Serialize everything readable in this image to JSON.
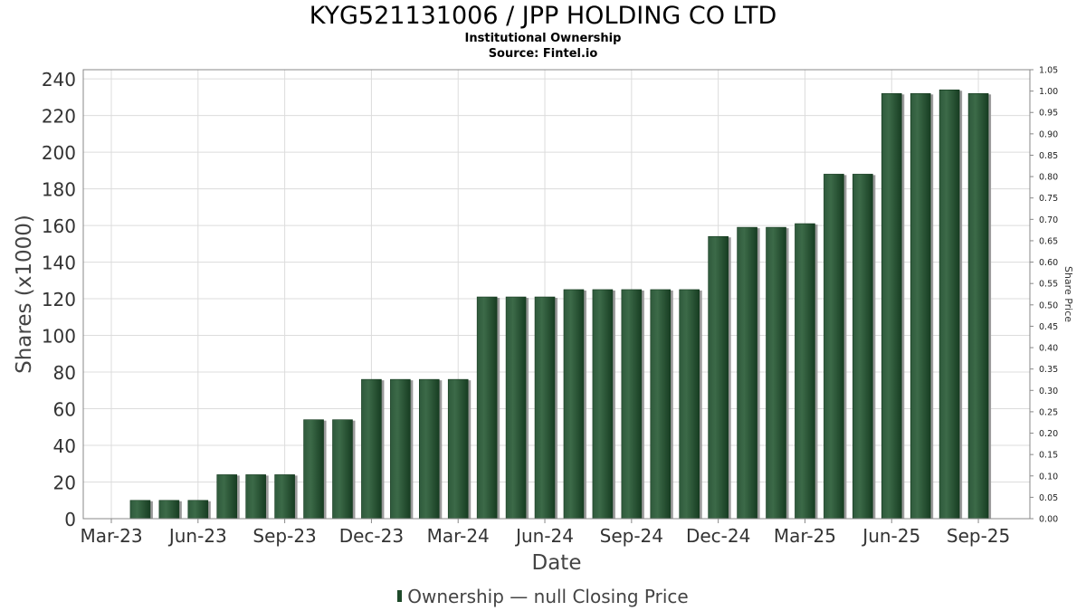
{
  "chart_data": {
    "type": "bar",
    "title": "KYG521131006 / JPP HOLDING CO LTD",
    "subtitle": [
      "Institutional Ownership",
      "Source: Fintel.io"
    ],
    "xlabel": "Date",
    "ylabel": "Shares (x1000)",
    "y2label": "Share Price",
    "x_tick_labels": [
      "Mar-23",
      "Jun-23",
      "Sep-23",
      "Dec-23",
      "Mar-24",
      "Jun-24",
      "Sep-24",
      "Dec-24",
      "Mar-25",
      "Jun-25",
      "Sep-25"
    ],
    "ylim": [
      0,
      245
    ],
    "yticks": [
      0,
      20,
      40,
      60,
      80,
      100,
      120,
      140,
      160,
      180,
      200,
      220,
      240
    ],
    "y2lim": [
      0,
      1.05
    ],
    "y2ticks": [
      "0.00",
      "0.05",
      "0.10",
      "0.15",
      "0.20",
      "0.25",
      "0.30",
      "0.35",
      "0.40",
      "0.45",
      "0.50",
      "0.55",
      "0.60",
      "0.65",
      "0.70",
      "0.75",
      "0.80",
      "0.85",
      "0.90",
      "0.95",
      "1.00",
      "1.05"
    ],
    "grid": true,
    "legend_position": "bottom",
    "series": [
      {
        "name": "Ownership",
        "color": "#1f4a2a",
        "values": [
          10,
          10,
          10,
          24,
          24,
          24,
          54,
          54,
          76,
          76,
          76,
          76,
          121,
          121,
          121,
          125,
          125,
          125,
          125,
          125,
          154,
          159,
          159,
          161,
          188,
          188,
          232,
          232,
          234,
          232
        ]
      }
    ],
    "legend": [
      "Ownership",
      "null Closing Price"
    ]
  }
}
